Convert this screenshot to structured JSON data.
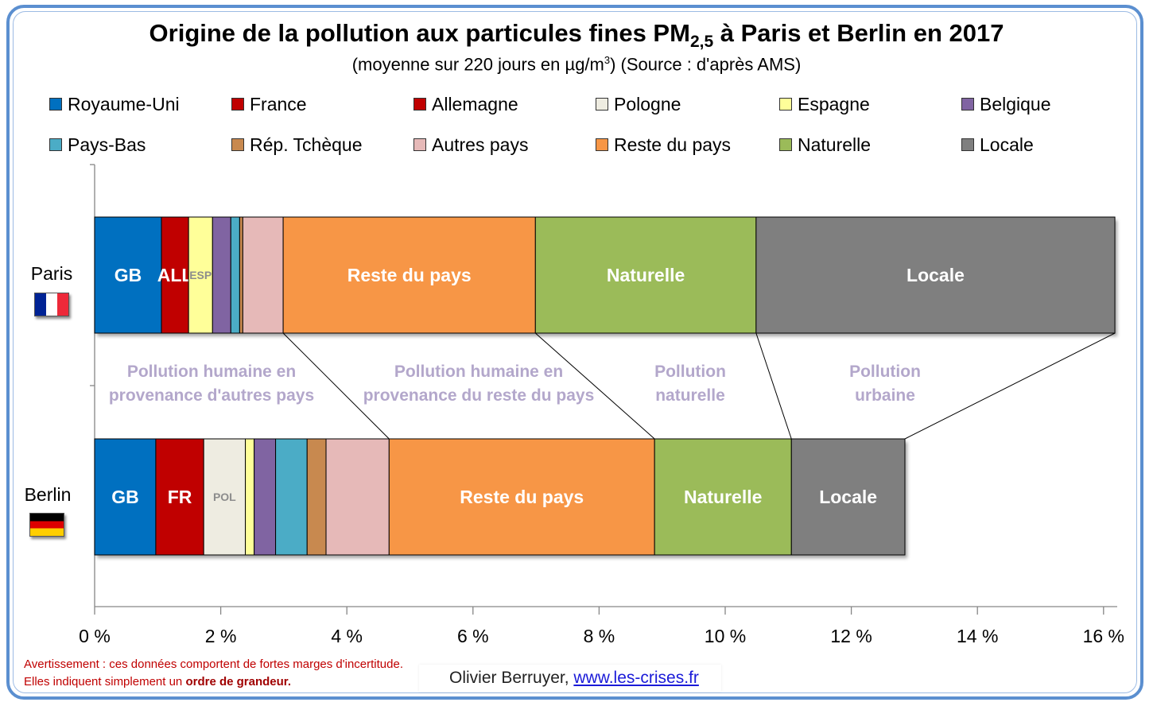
{
  "title": {
    "main": "Origine de la pollution aux particules fines PM",
    "sub": "2,5",
    "tail": " à Paris et Berlin en 2017"
  },
  "subtitle": {
    "pre": "(moyenne sur 220 jours en µg/m",
    "sup": "3",
    "post": ") (Source : d'après AMS)"
  },
  "legend": [
    {
      "label": "Royaume-Uni",
      "color": "#0070c0"
    },
    {
      "label": "France",
      "color": "#c00000"
    },
    {
      "label": "Allemagne",
      "color": "#c00000"
    },
    {
      "label": "Pologne",
      "color": "#eeece1"
    },
    {
      "label": "Espagne",
      "color": "#ffff99"
    },
    {
      "label": "Belgique",
      "color": "#8064a2"
    },
    {
      "label": "Pays-Bas",
      "color": "#4bacc6"
    },
    {
      "label": "Rép. Tchèque",
      "color": "#c8894f"
    },
    {
      "label": "Autres pays",
      "color": "#e6b9b8"
    },
    {
      "label": "Reste du pays",
      "color": "#f79646"
    },
    {
      "label": "Naturelle",
      "color": "#9bbb59"
    },
    {
      "label": "Locale",
      "color": "#7f7f7f"
    }
  ],
  "chart_data": {
    "type": "bar",
    "orientation": "horizontal",
    "stacked": true,
    "title": "Origine de la pollution aux particules fines PM2,5 à Paris et Berlin en 2017",
    "subtitle": "(moyenne sur 220 jours en µg/m3) (Source : d'après AMS)",
    "xlabel": "",
    "ylabel": "",
    "xlim": [
      0,
      16
    ],
    "x_ticks": [
      "0 %",
      "2 %",
      "4 %",
      "6 %",
      "8 %",
      "10 %",
      "12 %",
      "14 %",
      "16 %"
    ],
    "categories": [
      "Paris",
      "Berlin"
    ],
    "legend_position": "top",
    "grid": false,
    "bars": [
      {
        "category": "Paris",
        "segments": [
          {
            "name": "Royaume-Uni",
            "value": 1.06,
            "color": "#0070c0",
            "label": "GB",
            "label_color": "#ffffff"
          },
          {
            "name": "Allemagne",
            "value": 0.43,
            "color": "#c00000",
            "label": "ALL",
            "label_color": "#ffffff"
          },
          {
            "name": "Espagne",
            "value": 0.38,
            "color": "#ffff99",
            "label": "ESP",
            "label_color": "#8c8c8c"
          },
          {
            "name": "Belgique",
            "value": 0.29,
            "color": "#8064a2",
            "label": "",
            "label_color": ""
          },
          {
            "name": "Pays-Bas",
            "value": 0.14,
            "color": "#4bacc6",
            "label": "",
            "label_color": ""
          },
          {
            "name": "Rép. Tchèque",
            "value": 0.05,
            "color": "#c8894f",
            "label": "",
            "label_color": ""
          },
          {
            "name": "Autres pays",
            "value": 0.64,
            "color": "#e6b9b8",
            "label": "",
            "label_color": ""
          },
          {
            "name": "Reste du pays",
            "value": 4.0,
            "color": "#f79646",
            "label": "Reste du pays",
            "label_color": "#ffffff"
          },
          {
            "name": "Naturelle",
            "value": 3.5,
            "color": "#9bbb59",
            "label": "Naturelle",
            "label_color": "#ffffff"
          },
          {
            "name": "Locale",
            "value": 5.69,
            "color": "#7f7f7f",
            "label": "Locale",
            "label_color": "#ffffff"
          }
        ]
      },
      {
        "category": "Berlin",
        "segments": [
          {
            "name": "Royaume-Uni",
            "value": 0.97,
            "color": "#0070c0",
            "label": "GB",
            "label_color": "#ffffff"
          },
          {
            "name": "France",
            "value": 0.76,
            "color": "#c00000",
            "label": "FR",
            "label_color": "#ffffff"
          },
          {
            "name": "Pologne",
            "value": 0.66,
            "color": "#eeece1",
            "label": "POL",
            "label_color": "#8c8c8c"
          },
          {
            "name": "Espagne",
            "value": 0.14,
            "color": "#ffff99",
            "label": "",
            "label_color": ""
          },
          {
            "name": "Belgique",
            "value": 0.34,
            "color": "#8064a2",
            "label": "",
            "label_color": ""
          },
          {
            "name": "Pays-Bas",
            "value": 0.5,
            "color": "#4bacc6",
            "label": "",
            "label_color": ""
          },
          {
            "name": "Rép. Tchèque",
            "value": 0.3,
            "color": "#c8894f",
            "label": "",
            "label_color": ""
          },
          {
            "name": "Autres pays",
            "value": 1.0,
            "color": "#e6b9b8",
            "label": "",
            "label_color": ""
          },
          {
            "name": "Reste du pays",
            "value": 4.21,
            "color": "#f79646",
            "label": "Reste du pays",
            "label_color": "#ffffff"
          },
          {
            "name": "Naturelle",
            "value": 2.17,
            "color": "#9bbb59",
            "label": "Naturelle",
            "label_color": "#ffffff"
          },
          {
            "name": "Locale",
            "value": 1.8,
            "color": "#7f7f7f",
            "label": "Locale",
            "label_color": "#ffffff"
          }
        ]
      }
    ],
    "annotations": [
      {
        "line1": "Pollution humaine en",
        "line2": "provenance d'autres pays"
      },
      {
        "line1": "Pollution humaine en",
        "line2": "provenance du reste du pays"
      },
      {
        "line1": "Pollution",
        "line2": "naturelle"
      },
      {
        "line1": "Pollution",
        "line2": "urbaine"
      }
    ]
  },
  "categories_labels": {
    "paris": "Paris",
    "berlin": "Berlin"
  },
  "flags": {
    "paris": "france-flag",
    "berlin": "germany-flag"
  },
  "footer": {
    "warning_text": "Avertissement  : ces données comportent de fortes marges d'incertitude.  Elles indiquent  simplement  un ",
    "warning_bold": "ordre de grandeur.",
    "credit_name": "Olivier Berruyer, ",
    "credit_link": "www.les-crises.fr"
  }
}
